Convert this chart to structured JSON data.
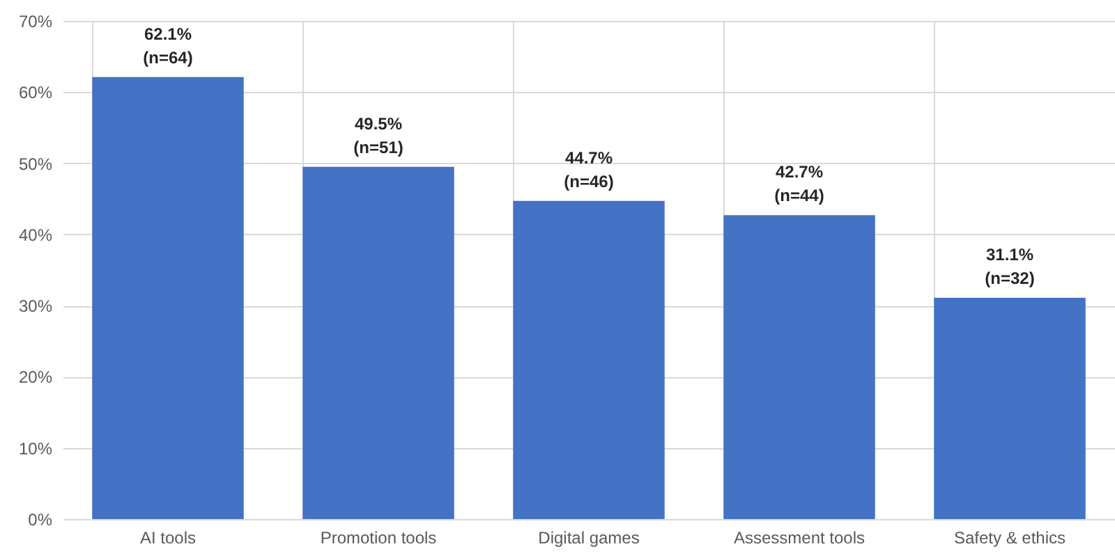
{
  "chart_data": {
    "type": "bar",
    "categories": [
      "AI tools",
      "Promotion tools",
      "Digital games",
      "Assessment tools",
      "Safety & ethics"
    ],
    "values": [
      62.1,
      49.5,
      44.7,
      42.7,
      31.1
    ],
    "color": "#4472c4",
    "value_labels": [
      "62.1% (n=64)",
      "49.5% (n=51)",
      "44.7% (n=46)",
      "42.7% (n=44)",
      "31.1% (n=32)"
    ],
    "ylim": [
      0,
      70
    ],
    "yticks": [
      {
        "value": 0,
        "label": "0%"
      },
      {
        "value": 10,
        "label": "10%"
      },
      {
        "value": 20,
        "label": "20%"
      },
      {
        "value": 30,
        "label": "30%"
      },
      {
        "value": 40,
        "label": "40%"
      },
      {
        "value": 50,
        "label": "50%"
      },
      {
        "value": 60,
        "label": "60%"
      },
      {
        "value": 70,
        "label": "70%"
      }
    ],
    "grid": true
  }
}
